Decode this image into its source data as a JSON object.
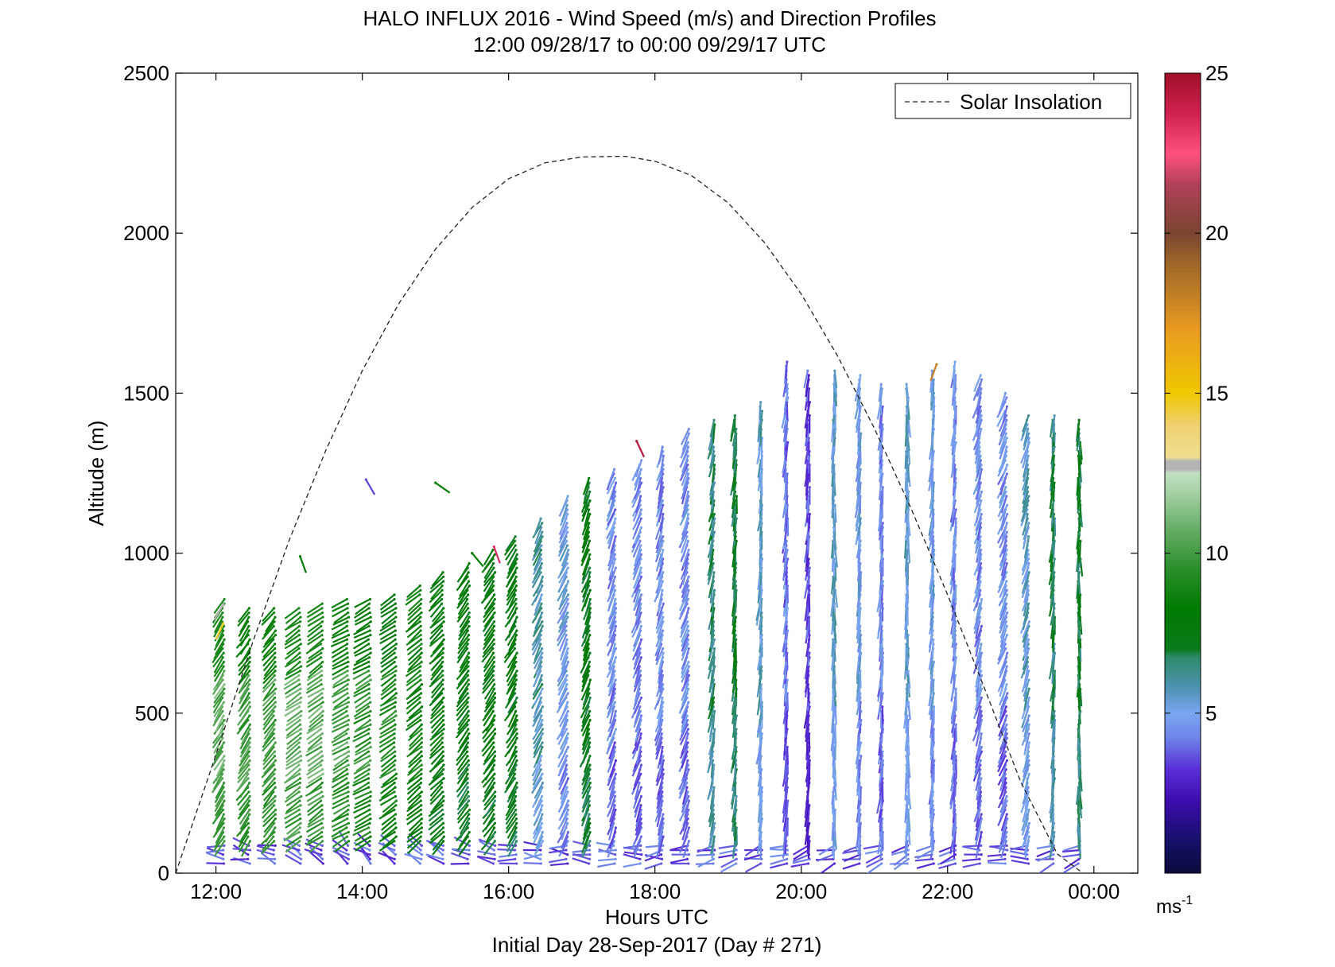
{
  "chart_data": {
    "type": "wind-barb profile",
    "title": "HALO INFLUX 2016 - Wind Speed (m/s) and Direction Profiles",
    "subtitle": "12:00 09/28/17 to 00:00 09/29/17  UTC",
    "xlabel": "Hours UTC",
    "footer": "Initial Day 28-Sep-2017 (Day # 271)",
    "ylabel": "Altitude (m)",
    "xlim_hours": [
      11.45,
      24.6
    ],
    "ylim": [
      0,
      2500
    ],
    "x_ticks": [
      {
        "hour": 12,
        "label": "12:00"
      },
      {
        "hour": 14,
        "label": "14:00"
      },
      {
        "hour": 16,
        "label": "16:00"
      },
      {
        "hour": 18,
        "label": "18:00"
      },
      {
        "hour": 20,
        "label": "20:00"
      },
      {
        "hour": 22,
        "label": "22:00"
      },
      {
        "hour": 24,
        "label": "00:00"
      }
    ],
    "y_ticks": [
      0,
      500,
      1000,
      1500,
      2000,
      2500
    ],
    "legend": {
      "label": "Solar Insolation",
      "placement": "top-right"
    },
    "colorbar": {
      "min": 0,
      "max": 25,
      "ticks": [
        5,
        10,
        15,
        20,
        25
      ],
      "unit_label": "ms",
      "unit_exp": "-1"
    },
    "solar_insolation": {
      "hours": [
        11.45,
        12.0,
        12.5,
        13.0,
        13.5,
        14.0,
        14.5,
        15.0,
        15.5,
        16.0,
        16.5,
        17.0,
        17.5,
        17.6,
        18.0,
        18.5,
        19.0,
        19.5,
        20.0,
        20.5,
        21.0,
        21.5,
        22.0,
        22.5,
        23.0,
        23.5,
        23.85
      ],
      "altitude": [
        0,
        370,
        720,
        1040,
        1320,
        1570,
        1780,
        1950,
        2080,
        2170,
        2220,
        2238,
        2240,
        2240,
        2225,
        2180,
        2095,
        1970,
        1810,
        1615,
        1390,
        1140,
        870,
        580,
        285,
        60,
        0
      ]
    },
    "profiles": [
      {
        "hour": 12.1,
        "top": 860,
        "dir": 210,
        "speed": 10.5
      },
      {
        "hour": 12.45,
        "top": 830,
        "dir": 215,
        "speed": 10.0
      },
      {
        "hour": 12.8,
        "top": 830,
        "dir": 220,
        "speed": 10.0
      },
      {
        "hour": 13.15,
        "top": 830,
        "dir": 235,
        "speed": 10.5
      },
      {
        "hour": 13.45,
        "top": 850,
        "dir": 235,
        "speed": 10.5
      },
      {
        "hour": 13.8,
        "top": 860,
        "dir": 240,
        "speed": 10.0
      },
      {
        "hour": 14.1,
        "top": 860,
        "dir": 240,
        "speed": 9.5
      },
      {
        "hour": 14.45,
        "top": 870,
        "dir": 235,
        "speed": 9.0
      },
      {
        "hour": 14.8,
        "top": 900,
        "dir": 230,
        "speed": 8.5
      },
      {
        "hour": 15.1,
        "top": 940,
        "dir": 225,
        "speed": 8.0
      },
      {
        "hour": 15.45,
        "top": 980,
        "dir": 215,
        "speed": 7.8
      },
      {
        "hour": 15.8,
        "top": 1020,
        "dir": 215,
        "speed": 7.8
      },
      {
        "hour": 16.1,
        "top": 1060,
        "dir": 210,
        "speed": 7.6
      },
      {
        "hour": 16.45,
        "top": 1120,
        "dir": 205,
        "speed": 6.0
      },
      {
        "hour": 16.8,
        "top": 1180,
        "dir": 205,
        "speed": 5.0
      },
      {
        "hour": 17.1,
        "top": 1240,
        "dir": 200,
        "speed": 7.5
      },
      {
        "hour": 17.45,
        "top": 1270,
        "dir": 200,
        "speed": 4.5
      },
      {
        "hour": 17.8,
        "top": 1300,
        "dir": 200,
        "speed": 4.5
      },
      {
        "hour": 18.1,
        "top": 1340,
        "dir": 195,
        "speed": 4.5
      },
      {
        "hour": 18.45,
        "top": 1400,
        "dir": 200,
        "speed": 4.5
      },
      {
        "hour": 18.8,
        "top": 1420,
        "dir": 190,
        "speed": 6.5
      },
      {
        "hour": 19.1,
        "top": 1440,
        "dir": 185,
        "speed": 7.0
      },
      {
        "hour": 19.45,
        "top": 1480,
        "dir": 185,
        "speed": 5.5
      },
      {
        "hour": 19.8,
        "top": 1600,
        "dir": 185,
        "speed": 4.2
      },
      {
        "hour": 20.1,
        "top": 1570,
        "dir": 185,
        "speed": 3.5
      },
      {
        "hour": 20.45,
        "top": 1570,
        "dir": 180,
        "speed": 5.5
      },
      {
        "hour": 20.8,
        "top": 1560,
        "dir": 185,
        "speed": 5.0
      },
      {
        "hour": 21.1,
        "top": 1540,
        "dir": 185,
        "speed": 4.5
      },
      {
        "hour": 21.45,
        "top": 1540,
        "dir": 180,
        "speed": 5.5
      },
      {
        "hour": 21.8,
        "top": 1580,
        "dir": 185,
        "speed": 5.0
      },
      {
        "hour": 22.1,
        "top": 1600,
        "dir": 185,
        "speed": 4.5
      },
      {
        "hour": 22.45,
        "top": 1560,
        "dir": 195,
        "speed": 4.5
      },
      {
        "hour": 22.8,
        "top": 1500,
        "dir": 200,
        "speed": 4.5
      },
      {
        "hour": 23.1,
        "top": 1440,
        "dir": 195,
        "speed": 5.5
      },
      {
        "hour": 23.45,
        "top": 1440,
        "dir": 185,
        "speed": 6.5
      },
      {
        "hour": 23.8,
        "top": 1420,
        "dir": 180,
        "speed": 7.0
      }
    ],
    "isolated_barbs": [
      {
        "hour": 13.15,
        "alt": 990,
        "dir": 160,
        "speed": 8.0
      },
      {
        "hour": 14.05,
        "alt": 1230,
        "dir": 150,
        "speed": 3.5
      },
      {
        "hour": 15.0,
        "alt": 1220,
        "dir": 125,
        "speed": 8.5
      },
      {
        "hour": 15.5,
        "alt": 1000,
        "dir": 140,
        "speed": 8.0
      },
      {
        "hour": 15.8,
        "alt": 1020,
        "dir": 160,
        "speed": 23.5
      },
      {
        "hour": 17.75,
        "alt": 1350,
        "dir": 155,
        "speed": 24.5
      },
      {
        "hour": 12.1,
        "alt": 840,
        "dir": 210,
        "speed": 12.7
      },
      {
        "hour": 12.1,
        "alt": 780,
        "dir": 205,
        "speed": 14.5
      },
      {
        "hour": 21.85,
        "alt": 1590,
        "dir": 200,
        "speed": 18.0
      }
    ]
  }
}
